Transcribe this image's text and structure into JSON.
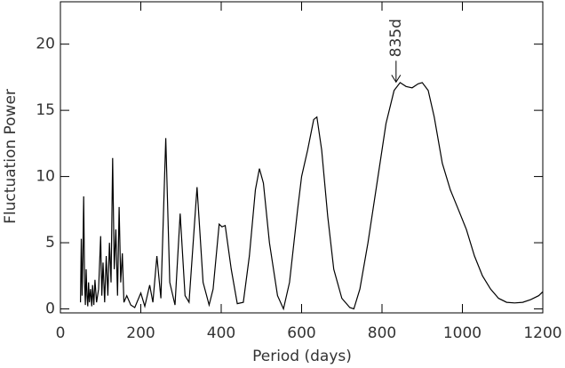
{
  "chart_data": {
    "type": "line",
    "x_label": "Period (days)",
    "y_label": "Fluctuation Power",
    "xlim": [
      0,
      1200
    ],
    "ylim": [
      -0.3,
      23.2
    ],
    "xticks": [
      0,
      200,
      400,
      600,
      800,
      1000,
      1200
    ],
    "yticks": [
      0,
      5,
      10,
      15,
      20
    ],
    "annotations": [
      {
        "text": "835d",
        "x": 835,
        "y": 17
      }
    ],
    "x": [
      50,
      52,
      54,
      56,
      58,
      60,
      62,
      64,
      66,
      68,
      70,
      72,
      75,
      78,
      80,
      83,
      86,
      90,
      95,
      100,
      103,
      106,
      110,
      114,
      118,
      122,
      126,
      130,
      134,
      138,
      142,
      146,
      150,
      154,
      158,
      165,
      175,
      185,
      200,
      210,
      222,
      230,
      240,
      250,
      262,
      272,
      285,
      298,
      310,
      320,
      340,
      355,
      370,
      380,
      395,
      402,
      410,
      425,
      440,
      455,
      470,
      485,
      495,
      505,
      520,
      540,
      555,
      570,
      590,
      600,
      615,
      630,
      638,
      650,
      665,
      680,
      700,
      720,
      730,
      745,
      765,
      790,
      810,
      830,
      845,
      860,
      875,
      890,
      900,
      915,
      930,
      950,
      970,
      990,
      1010,
      1030,
      1050,
      1070,
      1090,
      1110,
      1130,
      1150,
      1170,
      1190,
      1200
    ],
    "series": [
      {
        "color": "#000000",
        "values": [
          0.5,
          5.3,
          1,
          4,
          8.5,
          2,
          0.3,
          3,
          1,
          0.2,
          2,
          0.5,
          1.5,
          0.2,
          1.8,
          0.3,
          2.2,
          0.5,
          1.5,
          5.5,
          1,
          3.5,
          0.5,
          4,
          1,
          5,
          2,
          11.4,
          3,
          6,
          1,
          7.7,
          2,
          4.2,
          0.5,
          1,
          0.3,
          0.1,
          1.2,
          0.2,
          1.8,
          0.5,
          4,
          0.8,
          12.9,
          2,
          0.3,
          7.2,
          1,
          0.5,
          9.2,
          2,
          0.3,
          1.5,
          6.4,
          6.2,
          6.3,
          3,
          0.4,
          0.5,
          4,
          9,
          10.6,
          9.5,
          5,
          1,
          0,
          2,
          7.5,
          10,
          12,
          14.3,
          14.5,
          12,
          7,
          3,
          0.8,
          0.1,
          0,
          1.5,
          5,
          10,
          14,
          16.5,
          17.1,
          16.8,
          16.7,
          17,
          17.1,
          16.5,
          14.5,
          11,
          9,
          7.5,
          6,
          4,
          2.5,
          1.5,
          0.8,
          0.5,
          0.45,
          0.5,
          0.7,
          1.0,
          1.3
        ]
      }
    ]
  }
}
